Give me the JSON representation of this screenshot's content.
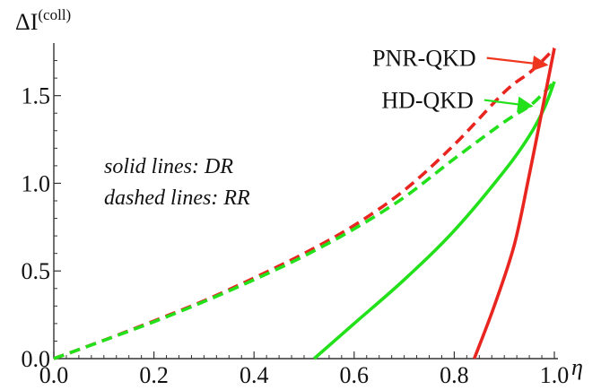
{
  "chart_data": {
    "type": "line",
    "xlabel": "η",
    "ylabel": {
      "main": "ΔI",
      "sup": "(coll)"
    },
    "xlim": [
      0.0,
      1.0
    ],
    "ylim": [
      0.0,
      1.8
    ],
    "x_ticks": [
      "0.0",
      "0.2",
      "0.4",
      "0.6",
      "0.8",
      "1.0"
    ],
    "y_ticks": [
      "0.0",
      "0.5",
      "1.0",
      "1.5"
    ],
    "grid": false,
    "colors": {
      "red": "#e8261f",
      "green": "#22e01a",
      "arrow_red": "#f0351f",
      "arrow_green": "#22e01a"
    },
    "series": [
      {
        "name": "",
        "color": "red",
        "style": "dashed",
        "x": [
          0.0,
          0.1,
          0.2,
          0.3,
          0.4,
          0.5,
          0.6,
          0.7,
          0.8,
          0.9,
          0.95,
          0.98,
          1.0
        ],
        "y": [
          0.0,
          0.105,
          0.215,
          0.33,
          0.46,
          0.6,
          0.76,
          0.96,
          1.22,
          1.52,
          1.63,
          1.71,
          1.77
        ]
      },
      {
        "name": "",
        "color": "green",
        "style": "dashed",
        "x": [
          0.0,
          0.1,
          0.2,
          0.3,
          0.4,
          0.5,
          0.6,
          0.7,
          0.8,
          0.9,
          0.95,
          0.98,
          1.0
        ],
        "y": [
          0.0,
          0.104,
          0.21,
          0.325,
          0.45,
          0.585,
          0.74,
          0.92,
          1.14,
          1.35,
          1.44,
          1.52,
          1.58
        ]
      },
      {
        "name": "",
        "color": "green",
        "style": "solid",
        "x": [
          0.52,
          0.6,
          0.7,
          0.8,
          0.9,
          0.95,
          0.98,
          1.0
        ],
        "y": [
          0.0,
          0.2,
          0.45,
          0.73,
          1.07,
          1.27,
          1.43,
          1.58
        ]
      },
      {
        "name": "",
        "color": "red",
        "style": "solid",
        "x": [
          0.84,
          0.88,
          0.92,
          0.95,
          0.98,
          1.0
        ],
        "y": [
          0.0,
          0.3,
          0.65,
          1.05,
          1.48,
          1.77
        ]
      }
    ],
    "annotations": [
      {
        "text": "PNR-QKD",
        "color": "arrow_red",
        "arrow_from": [
          0.865,
          1.715
        ],
        "arrow_to": [
          0.985,
          1.675
        ]
      },
      {
        "text": "HD-QKD",
        "color": "arrow_green",
        "arrow_from": [
          0.86,
          1.475
        ],
        "arrow_to": [
          0.955,
          1.44
        ]
      }
    ],
    "notes": [
      "solid lines: DR",
      "dashed lines: RR"
    ]
  }
}
